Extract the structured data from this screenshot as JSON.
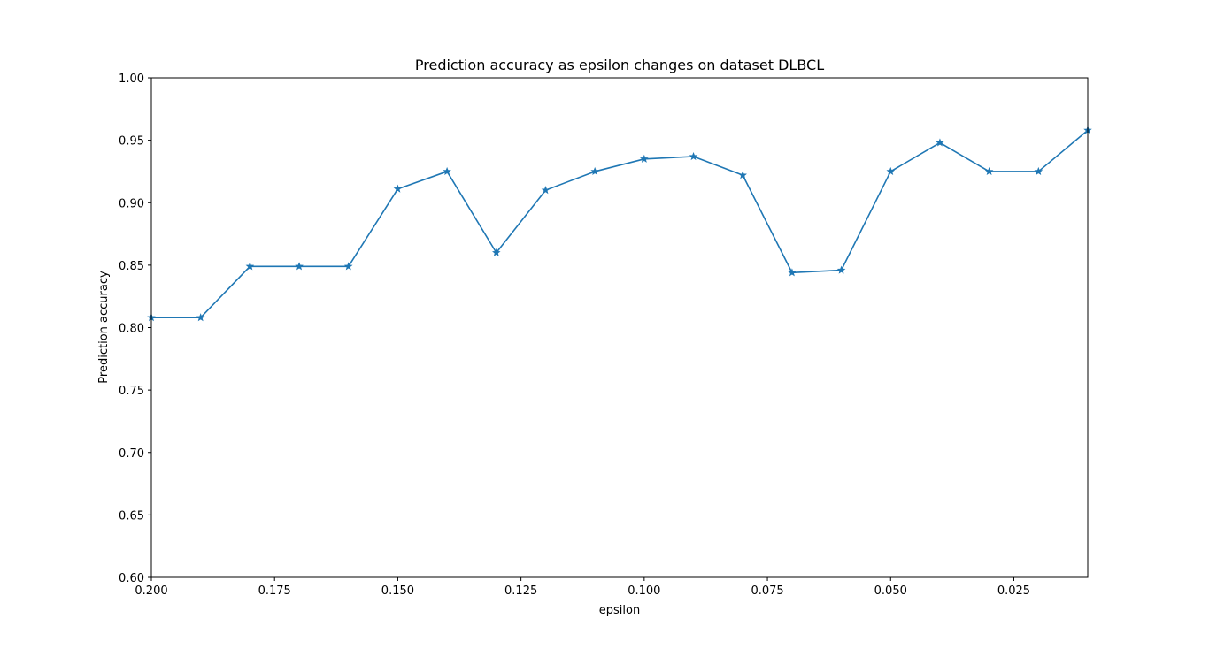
{
  "chart_data": {
    "type": "line",
    "title": "Prediction accuracy as epsilon changes on dataset DLBCL",
    "xlabel": "epsilon",
    "ylabel": "Prediction accuracy",
    "xlim": [
      0.2,
      0.01
    ],
    "ylim": [
      0.6,
      1.0
    ],
    "x_inverted": true,
    "grid": false,
    "marker": "star",
    "color": "#1f77b4",
    "xticks": [
      0.2,
      0.175,
      0.15,
      0.125,
      0.1,
      0.075,
      0.05,
      0.025
    ],
    "xtick_labels": [
      "0.200",
      "0.175",
      "0.150",
      "0.125",
      "0.100",
      "0.075",
      "0.050",
      "0.025"
    ],
    "yticks": [
      0.6,
      0.65,
      0.7,
      0.75,
      0.8,
      0.85,
      0.9,
      0.95,
      1.0
    ],
    "ytick_labels": [
      "0.60",
      "0.65",
      "0.70",
      "0.75",
      "0.80",
      "0.85",
      "0.90",
      "0.95",
      "1.00"
    ],
    "series": [
      {
        "x": [
          0.2,
          0.19,
          0.18,
          0.17,
          0.16,
          0.15,
          0.14,
          0.13,
          0.12,
          0.11,
          0.1,
          0.09,
          0.08,
          0.07,
          0.06,
          0.05,
          0.04,
          0.03,
          0.02,
          0.01
        ],
        "values": [
          0.808,
          0.808,
          0.849,
          0.849,
          0.849,
          0.911,
          0.925,
          0.86,
          0.91,
          0.925,
          0.935,
          0.937,
          0.922,
          0.844,
          0.846,
          0.925,
          0.948,
          0.925,
          0.925,
          0.958
        ]
      }
    ]
  }
}
